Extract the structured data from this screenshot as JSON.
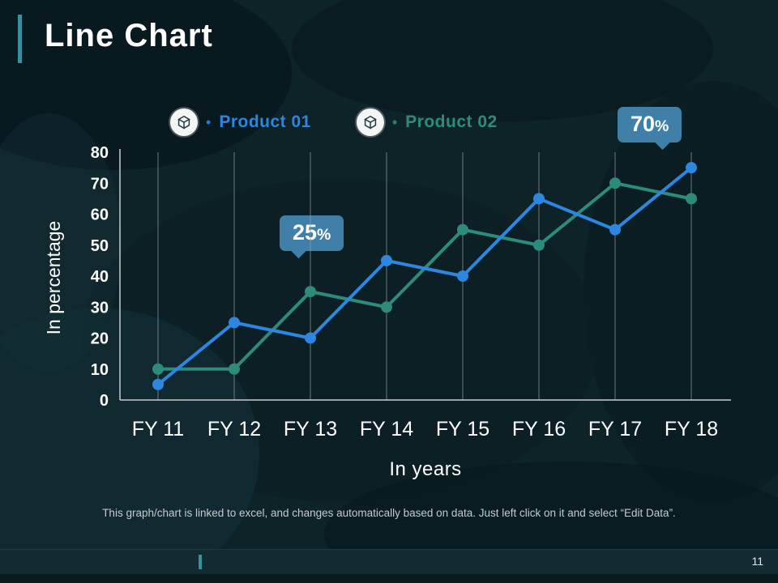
{
  "slide": {
    "title": "Line Chart",
    "page_number": "11",
    "footer_note": "This graph/chart is linked to excel, and changes automatically based on data. Just left click on it and select “Edit Data”."
  },
  "legend": {
    "bullet": "•"
  },
  "callouts": [
    {
      "value": "25",
      "unit": "%"
    },
    {
      "value": "70",
      "unit": "%"
    }
  ],
  "colors": {
    "background": "#0e2328",
    "accent_teal": "#37919e",
    "callout_blue": "#4080a8",
    "series_1_blue": "#2d86e0",
    "series_2_teal": "#2e8b7b",
    "gridline": "#8f979b",
    "axis": "#c8cdcf"
  },
  "chart_data": {
    "type": "line",
    "categories": [
      "FY 11",
      "FY 12",
      "FY 13",
      "FY 14",
      "FY 15",
      "FY 16",
      "FY 17",
      "FY 18"
    ],
    "series": [
      {
        "name": "Product 01",
        "color": "#2d86e0",
        "values": [
          5,
          25,
          20,
          45,
          40,
          65,
          55,
          75
        ]
      },
      {
        "name": "Product 02",
        "color": "#2e8b7b",
        "values": [
          10,
          10,
          35,
          30,
          55,
          50,
          70,
          65
        ]
      }
    ],
    "title": "",
    "xlabel": "In years",
    "ylabel": "In percentage",
    "ylim": [
      0,
      80
    ],
    "yticks": [
      0,
      10,
      20,
      30,
      40,
      50,
      60,
      70,
      80
    ],
    "grid": "vertical",
    "legend_position": "top"
  }
}
